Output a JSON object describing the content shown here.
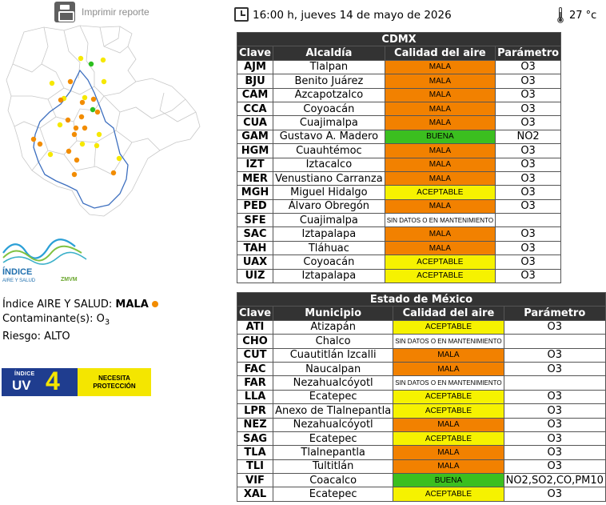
{
  "header": {
    "print_label": "Imprimir reporte",
    "datetime": "16:00 h, jueves 14 de mayo de 2026",
    "temperature": "27 °c"
  },
  "icons": {
    "print": "printer-icon",
    "clock": "clock-icon",
    "thermometer": "thermometer-icon"
  },
  "logo": {
    "line1": "ÍNDICE",
    "line2": "AIRE Y SALUD",
    "line3": "ZMVM"
  },
  "summary": {
    "index_label": "Índice AIRE Y SALUD: ",
    "index_value": "MALA",
    "pollutant_label": "Contaminante(s): ",
    "pollutant_value": "O",
    "pollutant_sub": "3",
    "risk_label": "Riesgo: ",
    "risk_value": "ALTO",
    "index_color": "#f28c00"
  },
  "uv": {
    "label1": "ÍNDICE",
    "label2": "UV",
    "value": "4",
    "message_line1": "NECESITA",
    "message_line2": "PROTECCIÓN"
  },
  "colors": {
    "mala": "#f28100",
    "buena": "#3bbf1f",
    "aceptable": "#f6f200",
    "header_bg": "#333333"
  },
  "cdmx": {
    "title": "CDMX",
    "headers": [
      "Clave",
      "Alcaldía",
      "Calidad del aire",
      "Parámetro"
    ],
    "rows": [
      {
        "clave": "AJM",
        "lugar": "Tlalpan",
        "calidad": "MALA",
        "nivel": "mala",
        "param": "O3"
      },
      {
        "clave": "BJU",
        "lugar": "Benito Juárez",
        "calidad": "MALA",
        "nivel": "mala",
        "param": "O3"
      },
      {
        "clave": "CAM",
        "lugar": "Azcapotzalco",
        "calidad": "MALA",
        "nivel": "mala",
        "param": "O3"
      },
      {
        "clave": "CCA",
        "lugar": "Coyoacán",
        "calidad": "MALA",
        "nivel": "mala",
        "param": "O3"
      },
      {
        "clave": "CUA",
        "lugar": "Cuajimalpa",
        "calidad": "MALA",
        "nivel": "mala",
        "param": "O3"
      },
      {
        "clave": "GAM",
        "lugar": "Gustavo A. Madero",
        "calidad": "BUENA",
        "nivel": "buena",
        "param": "NO2"
      },
      {
        "clave": "HGM",
        "lugar": "Cuauhtémoc",
        "calidad": "MALA",
        "nivel": "mala",
        "param": "O3"
      },
      {
        "clave": "IZT",
        "lugar": "Iztacalco",
        "calidad": "MALA",
        "nivel": "mala",
        "param": "O3"
      },
      {
        "clave": "MER",
        "lugar": "Venustiano Carranza",
        "calidad": "MALA",
        "nivel": "mala",
        "param": "O3"
      },
      {
        "clave": "MGH",
        "lugar": "Miguel Hidalgo",
        "calidad": "ACEPTABLE",
        "nivel": "aceptable",
        "param": "O3"
      },
      {
        "clave": "PED",
        "lugar": "Álvaro Obregón",
        "calidad": "MALA",
        "nivel": "mala",
        "param": "O3"
      },
      {
        "clave": "SFE",
        "lugar": "Cuajimalpa",
        "calidad": "SIN DATOS O EN MANTENIMIENTO",
        "nivel": "sd",
        "param": ""
      },
      {
        "clave": "SAC",
        "lugar": "Iztapalapa",
        "calidad": "MALA",
        "nivel": "mala",
        "param": "O3"
      },
      {
        "clave": "TAH",
        "lugar": "Tláhuac",
        "calidad": "MALA",
        "nivel": "mala",
        "param": "O3"
      },
      {
        "clave": "UAX",
        "lugar": "Coyoacán",
        "calidad": "ACEPTABLE",
        "nivel": "aceptable",
        "param": "O3"
      },
      {
        "clave": "UIZ",
        "lugar": "Iztapalapa",
        "calidad": "ACEPTABLE",
        "nivel": "aceptable",
        "param": "O3"
      }
    ]
  },
  "edomex": {
    "title": "Estado de México",
    "headers": [
      "Clave",
      "Municipio",
      "Calidad del aire",
      "Parámetro"
    ],
    "rows": [
      {
        "clave": "ATI",
        "lugar": "Atizapán",
        "calidad": "ACEPTABLE",
        "nivel": "aceptable",
        "param": "O3"
      },
      {
        "clave": "CHO",
        "lugar": "Chalco",
        "calidad": "SIN DATOS O EN MANTENIMIENTO",
        "nivel": "sd",
        "param": ""
      },
      {
        "clave": "CUT",
        "lugar": "Cuautitlán Izcalli",
        "calidad": "MALA",
        "nivel": "mala",
        "param": "O3"
      },
      {
        "clave": "FAC",
        "lugar": "Naucalpan",
        "calidad": "MALA",
        "nivel": "mala",
        "param": "O3"
      },
      {
        "clave": "FAR",
        "lugar": "Nezahualcóyotl",
        "calidad": "SIN DATOS O EN MANTENIMIENTO",
        "nivel": "sd",
        "param": ""
      },
      {
        "clave": "LLA",
        "lugar": "Ecatepec",
        "calidad": "ACEPTABLE",
        "nivel": "aceptable",
        "param": "O3"
      },
      {
        "clave": "LPR",
        "lugar": "Anexo de Tlalnepantla",
        "calidad": "ACEPTABLE",
        "nivel": "aceptable",
        "param": "O3"
      },
      {
        "clave": "NEZ",
        "lugar": "Nezahualcóyotl",
        "calidad": "MALA",
        "nivel": "mala",
        "param": "O3"
      },
      {
        "clave": "SAG",
        "lugar": "Ecatepec",
        "calidad": "ACEPTABLE",
        "nivel": "aceptable",
        "param": "O3"
      },
      {
        "clave": "TLA",
        "lugar": "Tlalnepantla",
        "calidad": "MALA",
        "nivel": "mala",
        "param": "O3"
      },
      {
        "clave": "TLI",
        "lugar": "Tultitlán",
        "calidad": "MALA",
        "nivel": "mala",
        "param": "O3"
      },
      {
        "clave": "VIF",
        "lugar": "Coacalco",
        "calidad": "BUENA",
        "nivel": "buena",
        "param": "NO2,SO2,CO,PM10"
      },
      {
        "clave": "XAL",
        "lugar": "Ecatepec",
        "calidad": "ACEPTABLE",
        "nivel": "aceptable",
        "param": "O3"
      }
    ]
  }
}
